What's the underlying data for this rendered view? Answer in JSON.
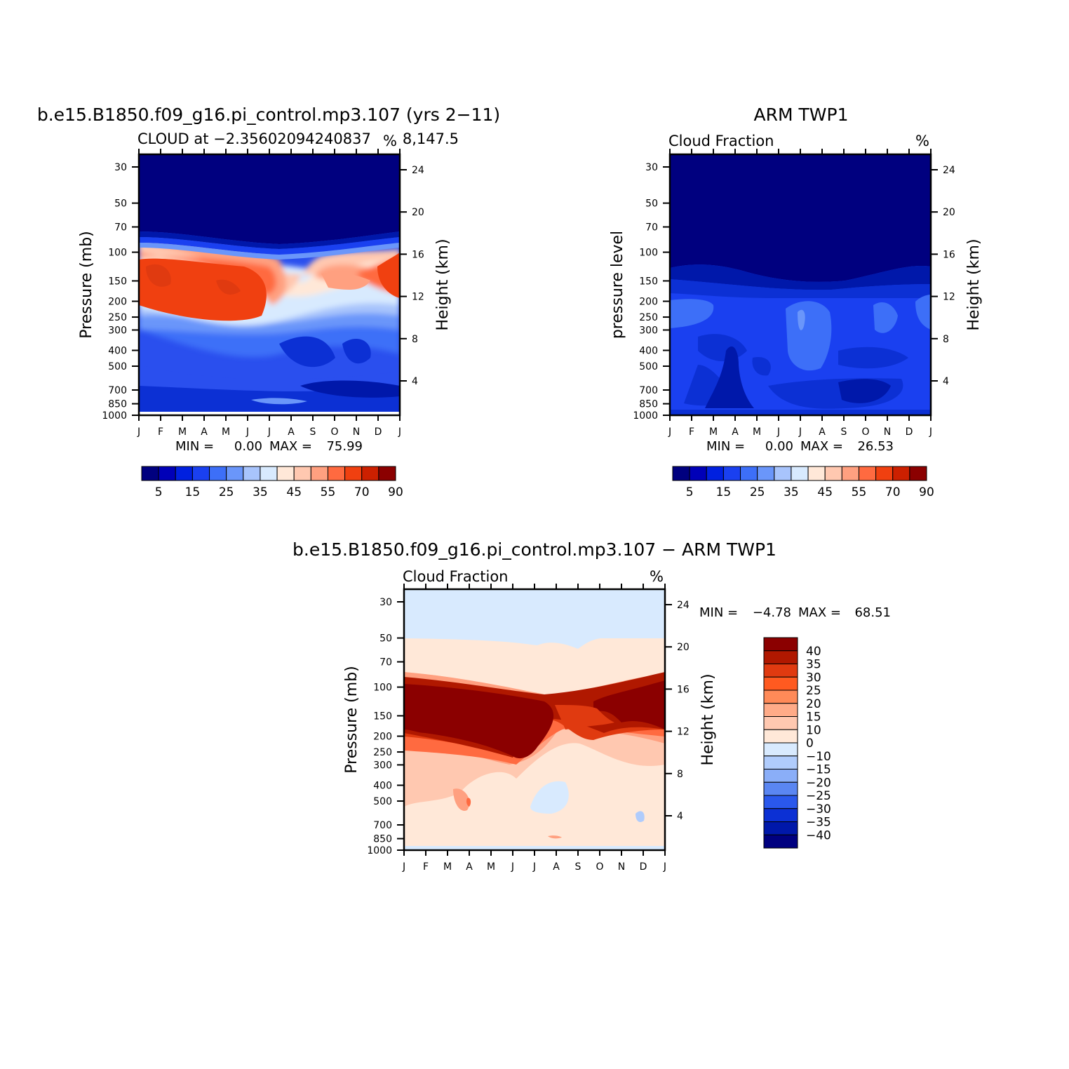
{
  "months": [
    "J",
    "F",
    "M",
    "A",
    "M",
    "J",
    "J",
    "A",
    "S",
    "O",
    "N",
    "D",
    "J"
  ],
  "pressure_ticks": [
    "30",
    "50",
    "70",
    "100",
    "150",
    "200",
    "250",
    "300",
    "400",
    "500",
    "700",
    "850",
    "1000"
  ],
  "pressure_values": [
    30,
    50,
    70,
    100,
    150,
    200,
    250,
    300,
    400,
    500,
    700,
    850,
    1000
  ],
  "height_ticks": [
    "24",
    "20",
    "16",
    "12",
    "8",
    "4"
  ],
  "height_values": [
    24,
    20,
    16,
    12,
    8,
    4
  ],
  "panels": [
    {
      "title": "b.e15.B1850.f09_g16.pi_control.mp3.107 (yrs 2−11)",
      "subtitle": "CLOUD at −2.35602094240837",
      "subtitle2": "8,147.5",
      "units": "%",
      "ylabel": "Pressure (mb)",
      "ylabel_right": "Height (km)",
      "min_label": "MIN =",
      "min_value": "0.00",
      "max_label": "MAX =",
      "max_value": "75.99"
    },
    {
      "title": "ARM TWP1",
      "subtitle": "Cloud Fraction",
      "units": "%",
      "ylabel": "pressure level",
      "ylabel_right": "Height (km)",
      "min_label": "MIN =",
      "min_value": "0.00",
      "max_label": "MAX =",
      "max_value": "26.53"
    },
    {
      "title": "b.e15.B1850.f09_g16.pi_control.mp3.107 − ARM TWP1",
      "subtitle": "Cloud Fraction",
      "units": "%",
      "ylabel": "Pressure (mb)",
      "ylabel_right": "Height (km)",
      "min_label": "MIN =",
      "min_value": "−4.78",
      "max_label": "MAX =",
      "max_value": "68.51"
    }
  ],
  "colorbar_top": {
    "colors": [
      "#00007f",
      "#0000b8",
      "#0020e0",
      "#1a40f0",
      "#3d6ff8",
      "#6a96fa",
      "#a8c4fc",
      "#d8eafe",
      "#ffe8d8",
      "#ffc8b0",
      "#ffa080",
      "#ff6a40",
      "#f04010",
      "#cc2000",
      "#8b0000"
    ],
    "labels": [
      "5",
      "15",
      "25",
      "35",
      "45",
      "55",
      "70",
      "90"
    ]
  },
  "colorbar_diff": {
    "colors": [
      "#8b0000",
      "#b01800",
      "#e03a10",
      "#ff5a20",
      "#ff8a58",
      "#ffab88",
      "#ffc8b0",
      "#ffe8d8",
      "#d8eafe",
      "#b0ccfc",
      "#8aaef8",
      "#5a86f2",
      "#2a58ec",
      "#0c30d4",
      "#0018aa",
      "#000080"
    ],
    "labels": [
      "40",
      "35",
      "30",
      "25",
      "20",
      "15",
      "10",
      "0",
      "−10",
      "−15",
      "−20",
      "−25",
      "−30",
      "−35",
      "−40"
    ]
  },
  "chart_data": [
    {
      "type": "heatmap",
      "title": "b.e15.B1850.f09_g16.pi_control.mp3.107 (yrs 2−11)",
      "subtitle": "CLOUD at −2.356020942408378,147.5",
      "units": "%",
      "x": [
        "J",
        "F",
        "M",
        "A",
        "M",
        "J",
        "J",
        "A",
        "S",
        "O",
        "N",
        "D",
        "J"
      ],
      "y_pressure_mb": [
        30,
        50,
        70,
        100,
        150,
        200,
        250,
        300,
        400,
        500,
        700,
        850,
        1000
      ],
      "ylabel": "Pressure (mb)",
      "ylabel_right": "Height (km)",
      "y_right_km": [
        24,
        20,
        16,
        12,
        8,
        4
      ],
      "min": 0.0,
      "max": 75.99,
      "levels": [
        5,
        15,
        25,
        35,
        45,
        55,
        70,
        90
      ]
    },
    {
      "type": "heatmap",
      "title": "ARM TWP1",
      "subtitle": "Cloud Fraction",
      "units": "%",
      "x": [
        "J",
        "F",
        "M",
        "A",
        "M",
        "J",
        "J",
        "A",
        "S",
        "O",
        "N",
        "D",
        "J"
      ],
      "y_pressure_mb": [
        30,
        50,
        70,
        100,
        150,
        200,
        250,
        300,
        400,
        500,
        700,
        850,
        1000
      ],
      "ylabel": "pressure level",
      "ylabel_right": "Height (km)",
      "y_right_km": [
        24,
        20,
        16,
        12,
        8,
        4
      ],
      "min": 0.0,
      "max": 26.53,
      "levels": [
        5,
        15,
        25,
        35,
        45,
        55,
        70,
        90
      ]
    },
    {
      "type": "heatmap",
      "title": "b.e15.B1850.f09_g16.pi_control.mp3.107 − ARM TWP1",
      "subtitle": "Cloud Fraction",
      "units": "%",
      "x": [
        "J",
        "F",
        "M",
        "A",
        "M",
        "J",
        "J",
        "A",
        "S",
        "O",
        "N",
        "D",
        "J"
      ],
      "y_pressure_mb": [
        30,
        50,
        70,
        100,
        150,
        200,
        250,
        300,
        400,
        500,
        700,
        850,
        1000
      ],
      "ylabel": "Pressure (mb)",
      "ylabel_right": "Height (km)",
      "y_right_km": [
        24,
        20,
        16,
        12,
        8,
        4
      ],
      "min": -4.78,
      "max": 68.51,
      "levels": [
        -40,
        -35,
        -30,
        -25,
        -20,
        -15,
        -10,
        0,
        10,
        15,
        20,
        25,
        30,
        35,
        40
      ]
    }
  ]
}
